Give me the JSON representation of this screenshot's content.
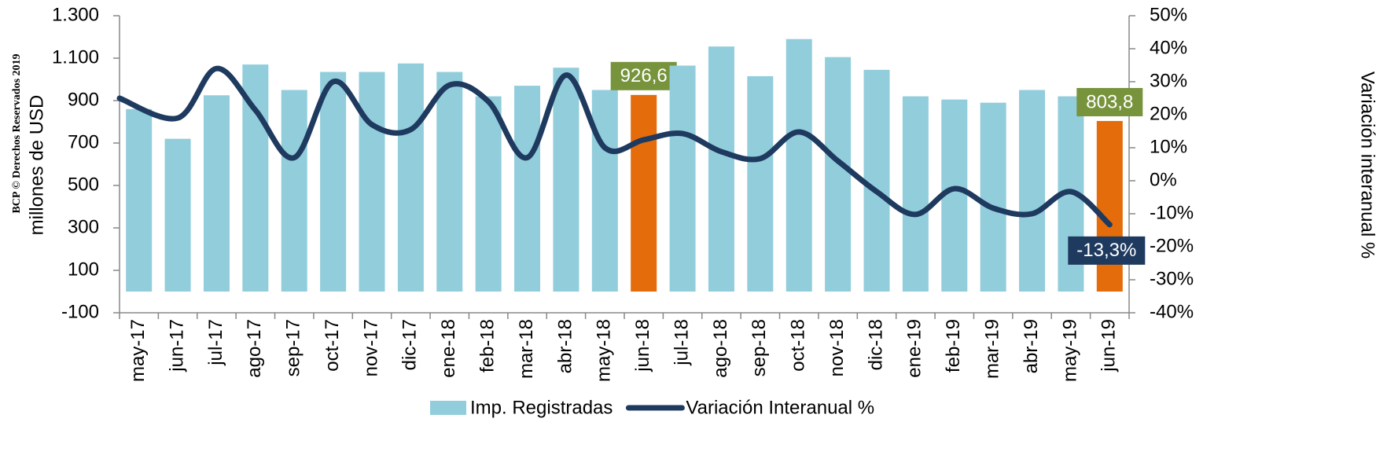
{
  "chart_data": {
    "type": "bar-line",
    "watermark": "BCP © Derechos Reservados 2019",
    "ylabel": "millones de USD",
    "y2label": "Variación interanual %",
    "categories": [
      "may-17",
      "jun-17",
      "jul-17",
      "ago-17",
      "sep-17",
      "oct-17",
      "nov-17",
      "dic-17",
      "ene-18",
      "feb-18",
      "mar-18",
      "abr-18",
      "may-18",
      "jun-18",
      "jul-18",
      "ago-18",
      "sep-18",
      "oct-18",
      "nov-18",
      "dic-18",
      "ene-19",
      "feb-19",
      "mar-19",
      "abr-19",
      "may-19",
      "jun-19"
    ],
    "series": [
      {
        "name": "Imp. Registradas",
        "type": "bar",
        "color": "#92cddc",
        "colors": [
          "#92cddc",
          "#92cddc",
          "#92cddc",
          "#92cddc",
          "#92cddc",
          "#92cddc",
          "#92cddc",
          "#92cddc",
          "#92cddc",
          "#92cddc",
          "#92cddc",
          "#92cddc",
          "#92cddc",
          "#e46c0a",
          "#92cddc",
          "#92cddc",
          "#92cddc",
          "#92cddc",
          "#92cddc",
          "#92cddc",
          "#92cddc",
          "#92cddc",
          "#92cddc",
          "#92cddc",
          "#92cddc",
          "#e46c0a"
        ],
        "values": [
          860,
          720,
          925,
          1070,
          950,
          1035,
          1035,
          1075,
          1035,
          920,
          970,
          1055,
          950,
          926.6,
          1065,
          1155,
          1015,
          1190,
          1105,
          1045,
          920,
          905,
          890,
          950,
          920,
          803.8
        ],
        "value_labels": [
          null,
          null,
          null,
          null,
          null,
          null,
          null,
          null,
          null,
          null,
          null,
          null,
          null,
          "926,6",
          null,
          null,
          null,
          null,
          null,
          null,
          null,
          null,
          null,
          null,
          null,
          "803,8"
        ]
      },
      {
        "name": "Variación Interanual %",
        "type": "line",
        "axis": "y2",
        "color": "#1f3a5f",
        "values": [
          25,
          19,
          34,
          21.4,
          7,
          30,
          17,
          15.5,
          29,
          24,
          7,
          32,
          10,
          12.4,
          14.3,
          8.8,
          6.7,
          14.8,
          6,
          -3.3,
          -10.2,
          -2.4,
          -8.3,
          -10,
          -3.3,
          -13.3
        ],
        "value_labels": [
          null,
          null,
          null,
          null,
          null,
          null,
          null,
          null,
          null,
          null,
          null,
          null,
          null,
          null,
          null,
          null,
          null,
          null,
          null,
          null,
          null,
          null,
          null,
          null,
          null,
          "-13,3%"
        ]
      }
    ],
    "ylim": [
      -100,
      1300
    ],
    "yticks": [
      -100,
      100,
      300,
      500,
      700,
      900,
      {
        "value": 1100,
        "label": "1.100"
      },
      {
        "value": 1300,
        "label": "1.300"
      }
    ],
    "y2lim": [
      -40,
      50
    ],
    "y2ticks": [
      {
        "value": -40,
        "label": "-40%"
      },
      {
        "value": -30,
        "label": "-30%"
      },
      {
        "value": -20,
        "label": "-20%"
      },
      {
        "value": -10,
        "label": "-10%"
      },
      {
        "value": 0,
        "label": "0%"
      },
      {
        "value": 10,
        "label": "10%"
      },
      {
        "value": 20,
        "label": "20%"
      },
      {
        "value": 30,
        "label": "30%"
      },
      {
        "value": 40,
        "label": "40%"
      },
      {
        "value": 50,
        "label": "50%"
      }
    ],
    "legend": "bottom"
  }
}
